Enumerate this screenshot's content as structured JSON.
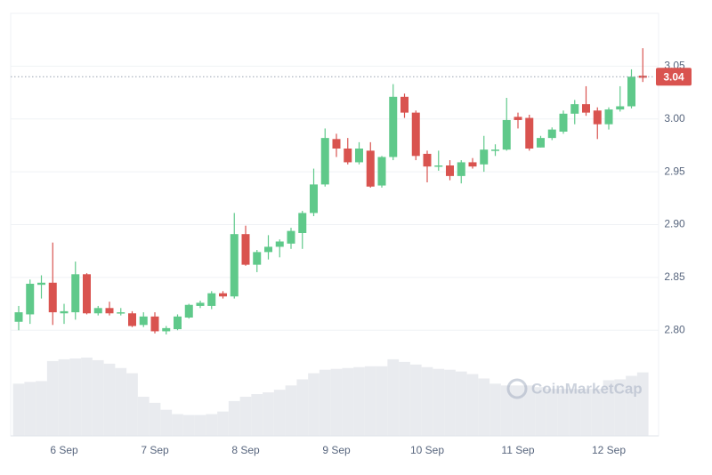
{
  "chart_data": {
    "type": "candlestick",
    "categories": [
      null,
      null,
      null,
      null,
      "6 Sep",
      null,
      null,
      null,
      null,
      null,
      null,
      null,
      "7 Sep",
      null,
      null,
      null,
      null,
      null,
      null,
      null,
      "8 Sep",
      null,
      null,
      null,
      null,
      null,
      null,
      null,
      "9 Sep",
      null,
      null,
      null,
      null,
      null,
      null,
      null,
      "10 Sep",
      null,
      null,
      null,
      null,
      null,
      null,
      null,
      "11 Sep",
      null,
      null,
      null,
      null,
      null,
      null,
      null,
      "12 Sep",
      null,
      null,
      null
    ],
    "open": [
      2.808,
      2.815,
      2.843,
      2.845,
      2.816,
      2.817,
      2.853,
      2.816,
      2.821,
      2.816,
      2.816,
      2.805,
      2.813,
      2.799,
      2.801,
      2.812,
      2.823,
      2.823,
      2.835,
      2.832,
      2.891,
      2.862,
      2.874,
      2.879,
      2.882,
      2.892,
      2.911,
      2.938,
      2.981,
      2.972,
      2.959,
      2.97,
      2.937,
      2.964,
      3.021,
      3.006,
      2.967,
      2.955,
      2.956,
      2.946,
      2.959,
      2.957,
      2.97,
      2.971,
      3.002,
      3.001,
      2.973,
      2.982,
      2.988,
      3.005,
      3.014,
      3.008,
      2.995,
      3.009,
      3.012,
      3.041
    ],
    "high": [
      2.823,
      2.848,
      2.852,
      2.883,
      2.825,
      2.865,
      2.854,
      2.823,
      2.827,
      2.821,
      2.818,
      2.817,
      2.817,
      2.804,
      2.815,
      2.825,
      2.828,
      2.837,
      2.837,
      2.911,
      2.899,
      2.876,
      2.89,
      2.886,
      2.897,
      2.913,
      2.953,
      2.991,
      2.986,
      2.982,
      2.978,
      2.978,
      2.965,
      3.033,
      3.024,
      3.008,
      2.97,
      2.97,
      2.961,
      2.961,
      2.963,
      2.984,
      2.976,
      3.02,
      3.006,
      3.004,
      2.984,
      2.992,
      3.008,
      3.018,
      3.031,
      3.011,
      3.011,
      3.031,
      3.047,
      3.067
    ],
    "low": [
      2.8,
      2.806,
      2.83,
      2.805,
      2.806,
      2.81,
      2.815,
      2.814,
      2.814,
      2.814,
      2.803,
      2.803,
      2.797,
      2.796,
      2.8,
      2.811,
      2.821,
      2.82,
      2.83,
      2.83,
      2.861,
      2.855,
      2.867,
      2.869,
      2.877,
      2.877,
      2.908,
      2.936,
      2.964,
      2.957,
      2.957,
      2.935,
      2.935,
      2.961,
      3.001,
      2.961,
      2.94,
      2.951,
      2.942,
      2.939,
      2.953,
      2.95,
      2.965,
      2.97,
      2.991,
      2.97,
      2.973,
      2.98,
      2.986,
      2.995,
      3.003,
      2.981,
      2.99,
      3.007,
      3.01,
      3.035
    ],
    "close": [
      2.817,
      2.844,
      2.845,
      2.817,
      2.818,
      2.853,
      2.816,
      2.821,
      2.816,
      2.817,
      2.804,
      2.813,
      2.799,
      2.802,
      2.813,
      2.824,
      2.826,
      2.835,
      2.832,
      2.891,
      2.862,
      2.874,
      2.879,
      2.884,
      2.894,
      2.911,
      2.938,
      2.982,
      2.972,
      2.959,
      2.972,
      2.936,
      2.964,
      3.021,
      3.006,
      2.965,
      2.955,
      2.956,
      2.946,
      2.959,
      2.955,
      2.971,
      2.971,
      2.999,
      2.999,
      2.972,
      2.982,
      2.99,
      3.005,
      3.014,
      3.006,
      2.995,
      3.009,
      3.012,
      3.04,
      3.039
    ],
    "volume": [
      60,
      62,
      63,
      86,
      88,
      89,
      90,
      87,
      83,
      78,
      72,
      45,
      38,
      30,
      25,
      24,
      24,
      25,
      28,
      40,
      45,
      48,
      50,
      53,
      58,
      65,
      72,
      76,
      77,
      78,
      79,
      80,
      80,
      88,
      85,
      82,
      79,
      77,
      76,
      74,
      71,
      66,
      60,
      58,
      58,
      58,
      56,
      54,
      54,
      54,
      54,
      54,
      64,
      65,
      69,
      73
    ],
    "up_color": "#5fc98a",
    "down_color": "#d9534f",
    "volume_color": "#e9ebef",
    "ylim": [
      2.7,
      3.1
    ],
    "yticks": [
      {
        "value": 2.8,
        "label": "2.80"
      },
      {
        "value": 2.85,
        "label": "2.85"
      },
      {
        "value": 2.9,
        "label": "2.90"
      },
      {
        "value": 2.95,
        "label": "2.95"
      },
      {
        "value": 3.0,
        "label": "3.00"
      },
      {
        "value": 3.05,
        "label": "3.05"
      }
    ],
    "grid": true,
    "last_price": 3.04,
    "watermark": "CoinMarketCap"
  }
}
